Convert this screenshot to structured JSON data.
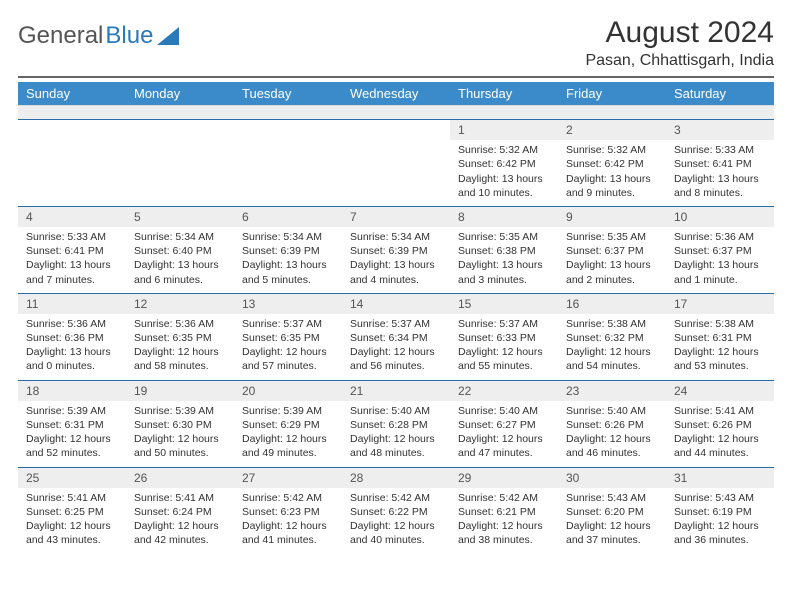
{
  "logo": {
    "text_gray": "General",
    "text_blue": "Blue"
  },
  "title": "August 2024",
  "location": "Pasan, Chhattisgarh, India",
  "colors": {
    "header_bg": "#3b8bca",
    "header_text": "#ffffff",
    "day_header_border": "#2a6ca8",
    "daynum_bg": "#eeeeee",
    "text": "#333333",
    "rule": "#666666"
  },
  "typography": {
    "month_title_fontsize_pt": 22,
    "location_fontsize_pt": 12,
    "dayheader_fontsize_pt": 10,
    "daynum_fontsize_pt": 9,
    "body_fontsize_pt": 8
  },
  "layout": {
    "columns": 7,
    "aspect_w": 792,
    "aspect_h": 612
  },
  "day_names": [
    "Sunday",
    "Monday",
    "Tuesday",
    "Wednesday",
    "Thursday",
    "Friday",
    "Saturday"
  ],
  "weeks": [
    [
      {
        "n": "",
        "sr": "",
        "ss": "",
        "dl": ""
      },
      {
        "n": "",
        "sr": "",
        "ss": "",
        "dl": ""
      },
      {
        "n": "",
        "sr": "",
        "ss": "",
        "dl": ""
      },
      {
        "n": "",
        "sr": "",
        "ss": "",
        "dl": ""
      },
      {
        "n": "1",
        "sr": "Sunrise: 5:32 AM",
        "ss": "Sunset: 6:42 PM",
        "dl": "Daylight: 13 hours and 10 minutes."
      },
      {
        "n": "2",
        "sr": "Sunrise: 5:32 AM",
        "ss": "Sunset: 6:42 PM",
        "dl": "Daylight: 13 hours and 9 minutes."
      },
      {
        "n": "3",
        "sr": "Sunrise: 5:33 AM",
        "ss": "Sunset: 6:41 PM",
        "dl": "Daylight: 13 hours and 8 minutes."
      }
    ],
    [
      {
        "n": "4",
        "sr": "Sunrise: 5:33 AM",
        "ss": "Sunset: 6:41 PM",
        "dl": "Daylight: 13 hours and 7 minutes."
      },
      {
        "n": "5",
        "sr": "Sunrise: 5:34 AM",
        "ss": "Sunset: 6:40 PM",
        "dl": "Daylight: 13 hours and 6 minutes."
      },
      {
        "n": "6",
        "sr": "Sunrise: 5:34 AM",
        "ss": "Sunset: 6:39 PM",
        "dl": "Daylight: 13 hours and 5 minutes."
      },
      {
        "n": "7",
        "sr": "Sunrise: 5:34 AM",
        "ss": "Sunset: 6:39 PM",
        "dl": "Daylight: 13 hours and 4 minutes."
      },
      {
        "n": "8",
        "sr": "Sunrise: 5:35 AM",
        "ss": "Sunset: 6:38 PM",
        "dl": "Daylight: 13 hours and 3 minutes."
      },
      {
        "n": "9",
        "sr": "Sunrise: 5:35 AM",
        "ss": "Sunset: 6:37 PM",
        "dl": "Daylight: 13 hours and 2 minutes."
      },
      {
        "n": "10",
        "sr": "Sunrise: 5:36 AM",
        "ss": "Sunset: 6:37 PM",
        "dl": "Daylight: 13 hours and 1 minute."
      }
    ],
    [
      {
        "n": "11",
        "sr": "Sunrise: 5:36 AM",
        "ss": "Sunset: 6:36 PM",
        "dl": "Daylight: 13 hours and 0 minutes."
      },
      {
        "n": "12",
        "sr": "Sunrise: 5:36 AM",
        "ss": "Sunset: 6:35 PM",
        "dl": "Daylight: 12 hours and 58 minutes."
      },
      {
        "n": "13",
        "sr": "Sunrise: 5:37 AM",
        "ss": "Sunset: 6:35 PM",
        "dl": "Daylight: 12 hours and 57 minutes."
      },
      {
        "n": "14",
        "sr": "Sunrise: 5:37 AM",
        "ss": "Sunset: 6:34 PM",
        "dl": "Daylight: 12 hours and 56 minutes."
      },
      {
        "n": "15",
        "sr": "Sunrise: 5:37 AM",
        "ss": "Sunset: 6:33 PM",
        "dl": "Daylight: 12 hours and 55 minutes."
      },
      {
        "n": "16",
        "sr": "Sunrise: 5:38 AM",
        "ss": "Sunset: 6:32 PM",
        "dl": "Daylight: 12 hours and 54 minutes."
      },
      {
        "n": "17",
        "sr": "Sunrise: 5:38 AM",
        "ss": "Sunset: 6:31 PM",
        "dl": "Daylight: 12 hours and 53 minutes."
      }
    ],
    [
      {
        "n": "18",
        "sr": "Sunrise: 5:39 AM",
        "ss": "Sunset: 6:31 PM",
        "dl": "Daylight: 12 hours and 52 minutes."
      },
      {
        "n": "19",
        "sr": "Sunrise: 5:39 AM",
        "ss": "Sunset: 6:30 PM",
        "dl": "Daylight: 12 hours and 50 minutes."
      },
      {
        "n": "20",
        "sr": "Sunrise: 5:39 AM",
        "ss": "Sunset: 6:29 PM",
        "dl": "Daylight: 12 hours and 49 minutes."
      },
      {
        "n": "21",
        "sr": "Sunrise: 5:40 AM",
        "ss": "Sunset: 6:28 PM",
        "dl": "Daylight: 12 hours and 48 minutes."
      },
      {
        "n": "22",
        "sr": "Sunrise: 5:40 AM",
        "ss": "Sunset: 6:27 PM",
        "dl": "Daylight: 12 hours and 47 minutes."
      },
      {
        "n": "23",
        "sr": "Sunrise: 5:40 AM",
        "ss": "Sunset: 6:26 PM",
        "dl": "Daylight: 12 hours and 46 minutes."
      },
      {
        "n": "24",
        "sr": "Sunrise: 5:41 AM",
        "ss": "Sunset: 6:26 PM",
        "dl": "Daylight: 12 hours and 44 minutes."
      }
    ],
    [
      {
        "n": "25",
        "sr": "Sunrise: 5:41 AM",
        "ss": "Sunset: 6:25 PM",
        "dl": "Daylight: 12 hours and 43 minutes."
      },
      {
        "n": "26",
        "sr": "Sunrise: 5:41 AM",
        "ss": "Sunset: 6:24 PM",
        "dl": "Daylight: 12 hours and 42 minutes."
      },
      {
        "n": "27",
        "sr": "Sunrise: 5:42 AM",
        "ss": "Sunset: 6:23 PM",
        "dl": "Daylight: 12 hours and 41 minutes."
      },
      {
        "n": "28",
        "sr": "Sunrise: 5:42 AM",
        "ss": "Sunset: 6:22 PM",
        "dl": "Daylight: 12 hours and 40 minutes."
      },
      {
        "n": "29",
        "sr": "Sunrise: 5:42 AM",
        "ss": "Sunset: 6:21 PM",
        "dl": "Daylight: 12 hours and 38 minutes."
      },
      {
        "n": "30",
        "sr": "Sunrise: 5:43 AM",
        "ss": "Sunset: 6:20 PM",
        "dl": "Daylight: 12 hours and 37 minutes."
      },
      {
        "n": "31",
        "sr": "Sunrise: 5:43 AM",
        "ss": "Sunset: 6:19 PM",
        "dl": "Daylight: 12 hours and 36 minutes."
      }
    ]
  ]
}
